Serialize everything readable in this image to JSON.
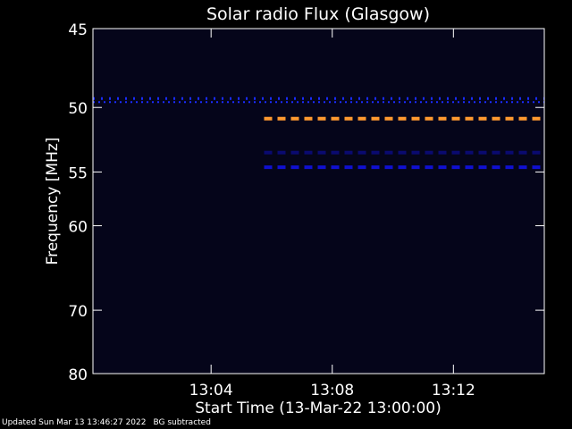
{
  "chart_data": {
    "type": "heatmap",
    "title": "Solar radio Flux (Glasgow)",
    "xlabel": "Start Time (13-Mar-22 13:00:00)",
    "ylabel": "Frequency [MHz]",
    "xlim_minutes": [
      "13:00:06",
      "13:15:00"
    ],
    "ylim": [
      45,
      80
    ],
    "x_ticks": [
      "13:04",
      "13:08",
      "13:12"
    ],
    "y_ticks": [
      45,
      50,
      55,
      60,
      70,
      80
    ],
    "background_color": "#05051a",
    "bands": [
      {
        "freq": 49.5,
        "start": "13:00:06",
        "end": "13:15:00",
        "color": "#1a2cff",
        "style": "ticks"
      },
      {
        "freq": 50.8,
        "start": "13:05:45",
        "end": "13:15:00",
        "color": "#ff9a30",
        "style": "dashed"
      },
      {
        "freq": 53.4,
        "start": "13:05:45",
        "end": "13:15:00",
        "color": "#0a0a70",
        "style": "dashed"
      },
      {
        "freq": 54.6,
        "start": "13:05:45",
        "end": "13:15:00",
        "color": "#1010d0",
        "style": "dashed"
      }
    ]
  },
  "footer": {
    "updated": "Updated Sun Mar 13 13:46:27 2022",
    "note": "BG subtracted"
  }
}
